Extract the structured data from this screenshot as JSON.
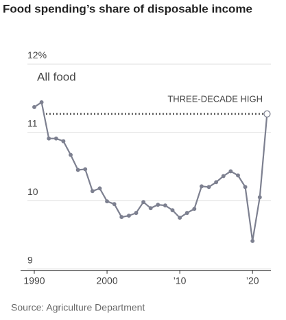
{
  "chart_data": {
    "type": "line",
    "title": "Food spending’s share of disposable income",
    "source": "Source: Agriculture Department",
    "annotations": [
      "All food",
      "THREE-DECADE HIGH"
    ],
    "x": [
      1990,
      1991,
      1992,
      1993,
      1994,
      1995,
      1996,
      1997,
      1998,
      1999,
      2000,
      2001,
      2002,
      2003,
      2004,
      2005,
      2006,
      2007,
      2008,
      2009,
      2010,
      2011,
      2012,
      2013,
      2014,
      2015,
      2016,
      2017,
      2018,
      2019,
      2020,
      2021,
      2022
    ],
    "series": [
      {
        "name": "All food",
        "color": "#7d8090",
        "values": [
          11.29,
          11.36,
          10.83,
          10.83,
          10.79,
          10.59,
          10.37,
          10.38,
          10.06,
          10.1,
          9.91,
          9.87,
          9.68,
          9.7,
          9.74,
          9.9,
          9.81,
          9.86,
          9.85,
          9.78,
          9.67,
          9.74,
          9.8,
          10.13,
          10.12,
          10.19,
          10.28,
          10.35,
          10.29,
          10.12,
          9.33,
          9.97,
          11.19
        ]
      }
    ],
    "xlim": [
      1989,
      2023
    ],
    "xticks": [
      1990,
      2000,
      {
        "value": 2010,
        "label": "’10"
      },
      {
        "value": 2020,
        "label": "’20"
      }
    ],
    "ylim": [
      8.9,
      12.1
    ],
    "yticks": [
      {
        "value": 12,
        "label": "12%"
      },
      11,
      10,
      9
    ],
    "grid": true
  }
}
